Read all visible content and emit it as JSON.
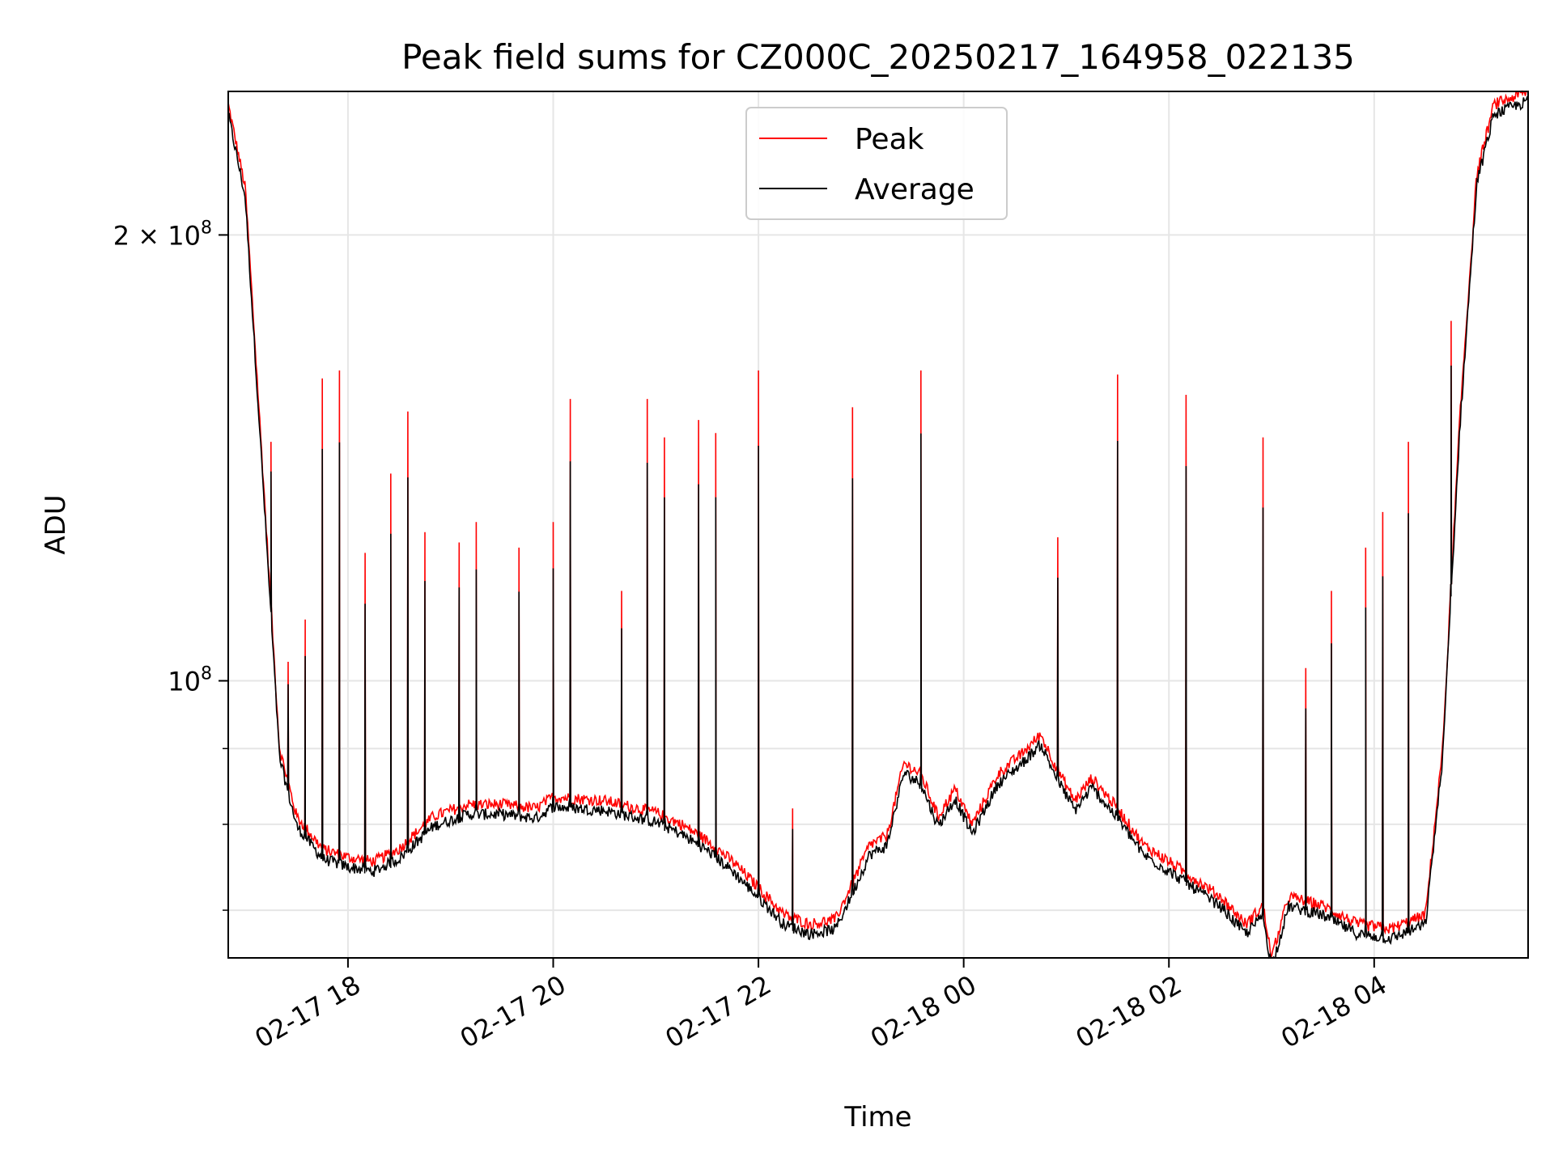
{
  "chart_data": {
    "type": "line",
    "title": "Peak field sums for CZ000C_20250217_164958_022135",
    "xlabel": "Time",
    "ylabel": "ADU",
    "yscale": "log",
    "xlim": [
      "2025-02-17 16:50",
      "2025-02-18 05:30"
    ],
    "ylim": [
      65000000,
      250000000
    ],
    "x_ticks": [
      {
        "value": "2025-02-17 18:00",
        "label": "02-17 18"
      },
      {
        "value": "2025-02-17 20:00",
        "label": "02-17 20"
      },
      {
        "value": "2025-02-17 22:00",
        "label": "02-17 22"
      },
      {
        "value": "2025-02-18 00:00",
        "label": "02-18 00"
      },
      {
        "value": "2025-02-18 02:00",
        "label": "02-18 02"
      },
      {
        "value": "2025-02-18 04:00",
        "label": "02-18 04"
      }
    ],
    "y_major_ticks": [
      {
        "value": 100000000,
        "base": "10",
        "exp": "8",
        "coef": ""
      },
      {
        "value": 200000000,
        "base": "10",
        "exp": "8",
        "coef": "2 × "
      }
    ],
    "y_minor_ticks": [
      70000000,
      80000000,
      90000000
    ],
    "grid": true,
    "legend_position": "top-center",
    "series": [
      {
        "name": "Peak",
        "color": "#ff0000",
        "baseline": [
          [
            "2025-02-17 16:50",
            245000000
          ],
          [
            "2025-02-17 17:00",
            215000000
          ],
          [
            "2025-02-17 17:10",
            140000000
          ],
          [
            "2025-02-17 17:20",
            90000000
          ],
          [
            "2025-02-17 17:30",
            81000000
          ],
          [
            "2025-02-17 17:45",
            77000000
          ],
          [
            "2025-02-17 18:00",
            76000000
          ],
          [
            "2025-02-17 18:15",
            75500000
          ],
          [
            "2025-02-17 18:30",
            77000000
          ],
          [
            "2025-02-17 18:50",
            81000000
          ],
          [
            "2025-02-17 19:10",
            82500000
          ],
          [
            "2025-02-17 19:30",
            82500000
          ],
          [
            "2025-02-17 19:50",
            82000000
          ],
          [
            "2025-02-17 20:00",
            83500000
          ],
          [
            "2025-02-17 20:30",
            83000000
          ],
          [
            "2025-02-17 21:00",
            81500000
          ],
          [
            "2025-02-17 21:15",
            80000000
          ],
          [
            "2025-02-17 21:30",
            78000000
          ],
          [
            "2025-02-17 21:45",
            75500000
          ],
          [
            "2025-02-17 22:00",
            72500000
          ],
          [
            "2025-02-17 22:15",
            69500000
          ],
          [
            "2025-02-17 22:30",
            68500000
          ],
          [
            "2025-02-17 22:45",
            69000000
          ],
          [
            "2025-02-17 22:55",
            73000000
          ],
          [
            "2025-02-17 23:05",
            77500000
          ],
          [
            "2025-02-17 23:15",
            78500000
          ],
          [
            "2025-02-17 23:25",
            88000000
          ],
          [
            "2025-02-17 23:35",
            86500000
          ],
          [
            "2025-02-17 23:45",
            81000000
          ],
          [
            "2025-02-17 23:55",
            84500000
          ],
          [
            "2025-02-18 00:05",
            80000000
          ],
          [
            "2025-02-18 00:20",
            86500000
          ],
          [
            "2025-02-18 00:35",
            89500000
          ],
          [
            "2025-02-18 00:45",
            92000000
          ],
          [
            "2025-02-18 00:55",
            87000000
          ],
          [
            "2025-02-18 01:05",
            83000000
          ],
          [
            "2025-02-18 01:15",
            86000000
          ],
          [
            "2025-02-18 01:30",
            82000000
          ],
          [
            "2025-02-18 01:45",
            77500000
          ],
          [
            "2025-02-18 02:00",
            75500000
          ],
          [
            "2025-02-18 02:15",
            73500000
          ],
          [
            "2025-02-18 02:30",
            71500000
          ],
          [
            "2025-02-18 02:45",
            68500000
          ],
          [
            "2025-02-18 02:55",
            70500000
          ],
          [
            "2025-02-18 03:00",
            65000000
          ],
          [
            "2025-02-18 03:10",
            71500000
          ],
          [
            "2025-02-18 03:30",
            70500000
          ],
          [
            "2025-02-18 03:50",
            68500000
          ],
          [
            "2025-02-18 04:10",
            68000000
          ],
          [
            "2025-02-18 04:30",
            69500000
          ],
          [
            "2025-02-18 04:40",
            90000000
          ],
          [
            "2025-02-18 04:50",
            150000000
          ],
          [
            "2025-02-18 05:00",
            220000000
          ],
          [
            "2025-02-18 05:10",
            245000000
          ],
          [
            "2025-02-18 05:30",
            250000000
          ]
        ],
        "spikes": [
          [
            "2025-02-17 17:15",
            145000000
          ],
          [
            "2025-02-17 17:25",
            103000000
          ],
          [
            "2025-02-17 17:35",
            110000000
          ],
          [
            "2025-02-17 17:45",
            160000000
          ],
          [
            "2025-02-17 17:55",
            162000000
          ],
          [
            "2025-02-17 18:10",
            122000000
          ],
          [
            "2025-02-17 18:25",
            138000000
          ],
          [
            "2025-02-17 18:35",
            152000000
          ],
          [
            "2025-02-17 18:45",
            126000000
          ],
          [
            "2025-02-17 19:05",
            124000000
          ],
          [
            "2025-02-17 19:15",
            128000000
          ],
          [
            "2025-02-17 19:40",
            123000000
          ],
          [
            "2025-02-17 20:00",
            128000000
          ],
          [
            "2025-02-17 20:10",
            155000000
          ],
          [
            "2025-02-17 20:40",
            115000000
          ],
          [
            "2025-02-17 20:55",
            155000000
          ],
          [
            "2025-02-17 21:05",
            146000000
          ],
          [
            "2025-02-17 21:25",
            150000000
          ],
          [
            "2025-02-17 21:35",
            147000000
          ],
          [
            "2025-02-17 22:00",
            162000000
          ],
          [
            "2025-02-17 22:20",
            82000000
          ],
          [
            "2025-02-17 22:55",
            153000000
          ],
          [
            "2025-02-17 23:35",
            162000000
          ],
          [
            "2025-02-18 00:55",
            125000000
          ],
          [
            "2025-02-18 01:30",
            161000000
          ],
          [
            "2025-02-18 02:10",
            156000000
          ],
          [
            "2025-02-18 02:55",
            146000000
          ],
          [
            "2025-02-18 03:20",
            102000000
          ],
          [
            "2025-02-18 03:35",
            115000000
          ],
          [
            "2025-02-18 03:55",
            123000000
          ],
          [
            "2025-02-18 04:05",
            130000000
          ],
          [
            "2025-02-18 04:20",
            145000000
          ],
          [
            "2025-02-18 04:45",
            175000000
          ]
        ]
      },
      {
        "name": "Average",
        "color": "#000000",
        "offset_factor": 0.985,
        "spike_factor": 0.8
      }
    ]
  }
}
